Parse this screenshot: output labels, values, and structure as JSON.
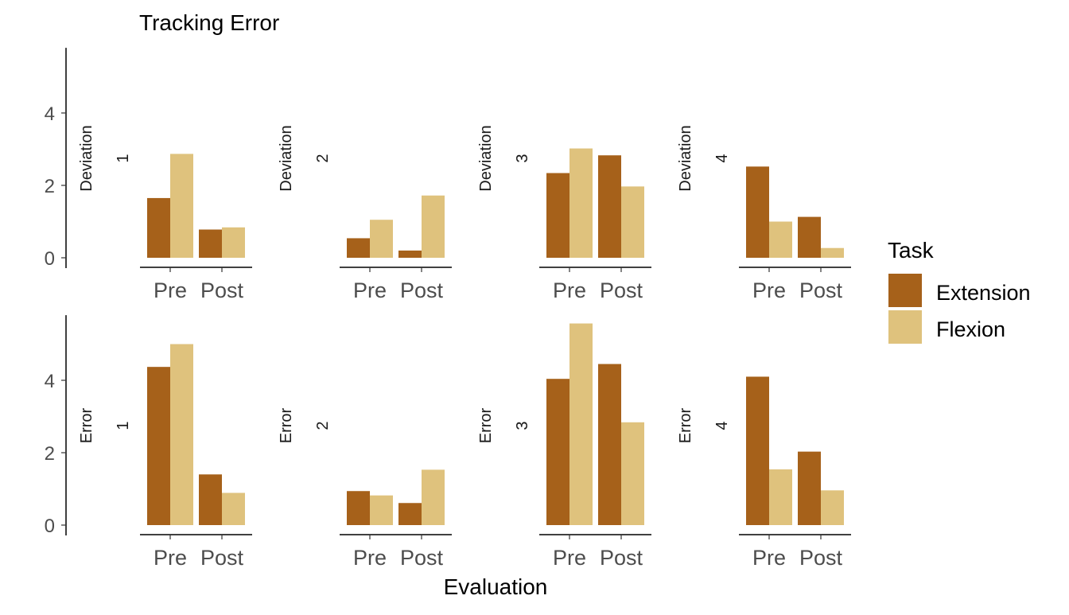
{
  "chart_data": {
    "type": "bar",
    "title": "Tracking Error",
    "xlabel": "Evaluation",
    "categories": [
      "Pre",
      "Post"
    ],
    "ylim": [
      0,
      5.8
    ],
    "yticks": [
      "0",
      "2",
      "4"
    ],
    "grid": false,
    "legend": {
      "title": "Task",
      "position": "right",
      "entries": [
        {
          "name": "Extension",
          "color": "#A6611A"
        },
        {
          "name": "Flexion",
          "color": "#DFC27D"
        }
      ]
    },
    "rows": [
      {
        "label": "Deviation",
        "panels": [
          {
            "label": "1",
            "series": [
              {
                "name": "Extension",
                "values": [
                  1.65,
                  0.78
                ]
              },
              {
                "name": "Flexion",
                "values": [
                  2.87,
                  0.84
                ]
              }
            ]
          },
          {
            "label": "2",
            "series": [
              {
                "name": "Extension",
                "values": [
                  0.54,
                  0.2
                ]
              },
              {
                "name": "Flexion",
                "values": [
                  1.05,
                  1.72
                ]
              }
            ]
          },
          {
            "label": "3",
            "series": [
              {
                "name": "Extension",
                "values": [
                  2.34,
                  2.83
                ]
              },
              {
                "name": "Flexion",
                "values": [
                  3.02,
                  1.97
                ]
              }
            ]
          },
          {
            "label": "4",
            "series": [
              {
                "name": "Extension",
                "values": [
                  2.52,
                  1.13
                ]
              },
              {
                "name": "Flexion",
                "values": [
                  1.0,
                  0.27
                ]
              }
            ]
          }
        ]
      },
      {
        "label": "Error",
        "panels": [
          {
            "label": "1",
            "series": [
              {
                "name": "Extension",
                "values": [
                  4.37,
                  1.4
                ]
              },
              {
                "name": "Flexion",
                "values": [
                  5.0,
                  0.89
                ]
              }
            ]
          },
          {
            "label": "2",
            "series": [
              {
                "name": "Extension",
                "values": [
                  0.94,
                  0.61
                ]
              },
              {
                "name": "Flexion",
                "values": [
                  0.82,
                  1.53
                ]
              }
            ]
          },
          {
            "label": "3",
            "series": [
              {
                "name": "Extension",
                "values": [
                  4.04,
                  4.45
                ]
              },
              {
                "name": "Flexion",
                "values": [
                  5.57,
                  2.84
                ]
              }
            ]
          },
          {
            "label": "4",
            "series": [
              {
                "name": "Extension",
                "values": [
                  4.1,
                  2.03
                ]
              },
              {
                "name": "Flexion",
                "values": [
                  1.54,
                  0.96
                ]
              }
            ]
          }
        ]
      }
    ]
  }
}
